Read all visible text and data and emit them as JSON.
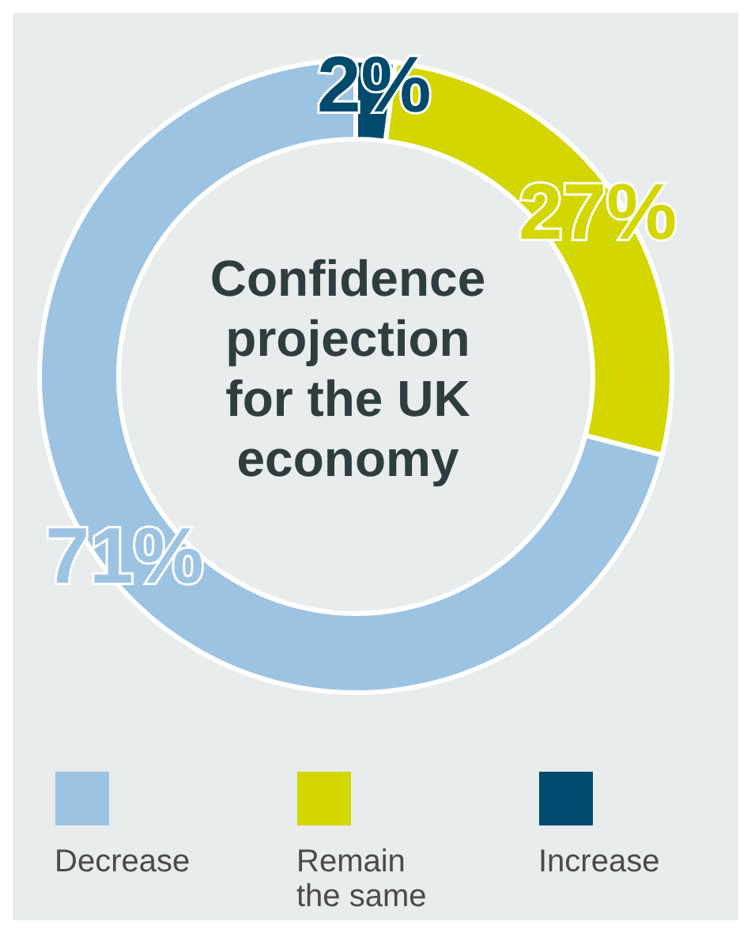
{
  "chart_data": {
    "type": "donut",
    "title": "Confidence projection for the UK economy",
    "categories": [
      "Decrease",
      "Remain the same",
      "Increase"
    ],
    "values": [
      71,
      27,
      2
    ],
    "colors": [
      "#9dc3e3",
      "#d4d600",
      "#004a6e"
    ],
    "value_labels": [
      "71%",
      "27%",
      "2%"
    ],
    "legend": "bottom"
  }
}
